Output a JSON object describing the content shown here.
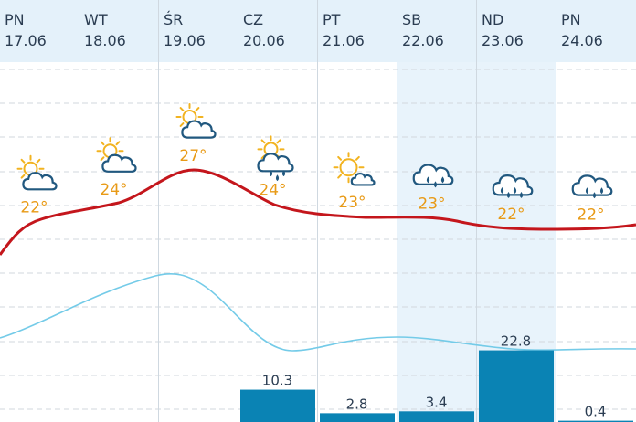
{
  "days": [
    {
      "weekday": "PN",
      "date": "17.06",
      "temp": "22°",
      "icon": "sun-behind-cloud-icon",
      "weekend": false
    },
    {
      "weekday": "WT",
      "date": "18.06",
      "temp": "24°",
      "icon": "sun-behind-cloud-icon",
      "weekend": false
    },
    {
      "weekday": "ŚR",
      "date": "19.06",
      "temp": "27°",
      "icon": "sun-behind-cloud-icon",
      "weekend": false
    },
    {
      "weekday": "CZ",
      "date": "20.06",
      "temp": "24°",
      "icon": "sun-cloud-rain-icon",
      "weekend": false
    },
    {
      "weekday": "PT",
      "date": "21.06",
      "temp": "23°",
      "icon": "sun-small-cloud-icon",
      "weekend": false
    },
    {
      "weekday": "SB",
      "date": "22.06",
      "temp": "23°",
      "icon": "rain-cloud-icon",
      "weekend": true
    },
    {
      "weekday": "ND",
      "date": "23.06",
      "temp": "22°",
      "icon": "heavy-rain-cloud-icon",
      "weekend": true
    },
    {
      "weekday": "PN",
      "date": "24.06",
      "temp": "22°",
      "icon": "rain-cloud-icon",
      "weekend": false
    }
  ],
  "precipitation": [
    {
      "value": 0,
      "label": ""
    },
    {
      "value": 0,
      "label": ""
    },
    {
      "value": 0,
      "label": ""
    },
    {
      "value": 10.3,
      "label": "10.3"
    },
    {
      "value": 2.8,
      "label": "2.8"
    },
    {
      "value": 3.4,
      "label": "3.4"
    },
    {
      "value": 22.8,
      "label": "22.8"
    },
    {
      "value": 0.4,
      "label": "0.4"
    }
  ],
  "colors": {
    "header_bg": "#e4f1fa",
    "weekend_bg": "#e8f3fb",
    "temp_text": "#e89a16",
    "temp_line": "#c4161c",
    "secondary_line": "#74cbe8",
    "precip_bar": "#0a83b4",
    "text": "#2b3d52",
    "sun": "#f2b320",
    "cloud": "#21587f"
  }
}
